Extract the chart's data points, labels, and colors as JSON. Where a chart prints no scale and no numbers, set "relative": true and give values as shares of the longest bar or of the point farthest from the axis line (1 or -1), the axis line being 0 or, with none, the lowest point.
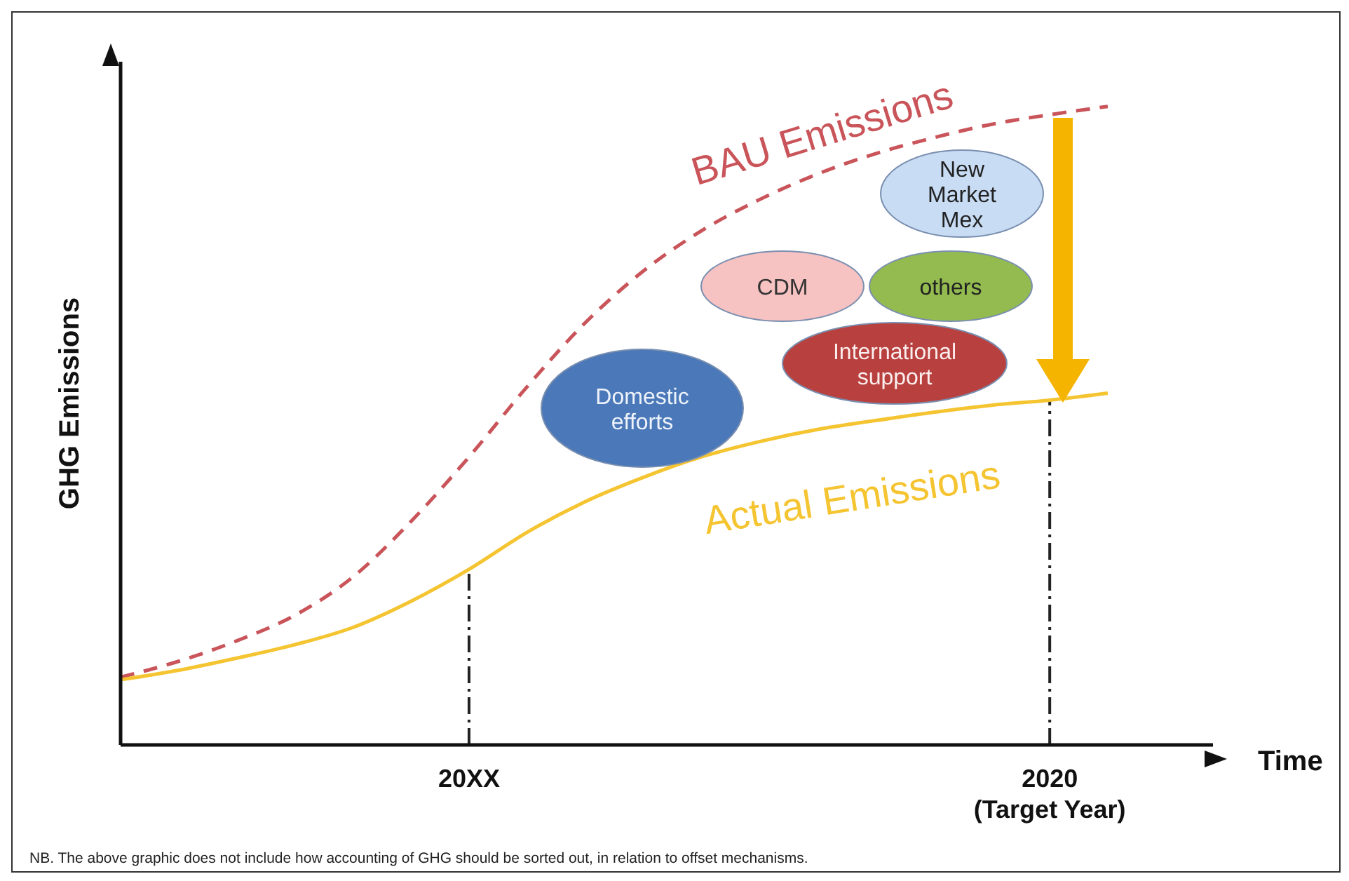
{
  "chart_data": {
    "type": "line",
    "relative": true,
    "ylabel": "GHG Emissions",
    "xlabel": "Time",
    "categories": [
      null,
      null,
      null,
      null,
      null,
      null,
      "20XX",
      null,
      null,
      null,
      null,
      null,
      null,
      null,
      null,
      null,
      "2020 (Target Year)",
      null
    ],
    "series": [
      {
        "name": "BAU Emissions",
        "color": "#c9545a",
        "line_style": "dashed",
        "values": [
          0.106,
          0.131,
          0.163,
          0.203,
          0.263,
          0.35,
          0.451,
          0.561,
          0.661,
          0.742,
          0.805,
          0.854,
          0.894,
          0.926,
          0.951,
          0.972,
          0.987,
          1
        ]
      },
      {
        "name": "Actual Emissions",
        "color": "#f5c431",
        "line_style": "solid",
        "values": [
          0.102,
          0.117,
          0.136,
          0.157,
          0.184,
          0.225,
          0.275,
          0.333,
          0.381,
          0.419,
          0.451,
          0.475,
          0.494,
          0.508,
          0.521,
          0.532,
          0.54,
          0.551
        ]
      }
    ],
    "ref_lines": [
      {
        "axis": "x",
        "value": "20XX",
        "color": "#222222",
        "line_style": "dashed"
      },
      {
        "axis": "x",
        "value": "2020 (Target Year)",
        "color": "#222222",
        "line_style": "dashed"
      }
    ],
    "annotations": [
      "Domestic\nefforts",
      "International\nsupport",
      "CDM",
      "others",
      "New\nMarket\nMex",
      "NB. The above graphic does not include how accounting of GHG should be sorted out, in relation to offset mechanisms."
    ],
    "marker": "none",
    "legend": false
  }
}
